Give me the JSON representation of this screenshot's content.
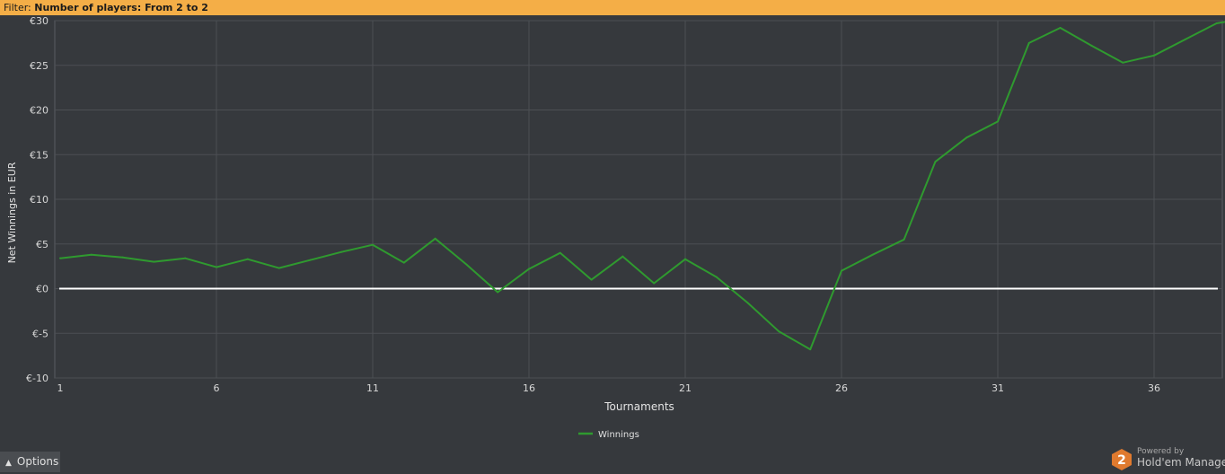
{
  "filter": {
    "prefix": "Filter:",
    "text": "Number of players: From 2 to 2",
    "bar_color": "#f4ae47"
  },
  "options": {
    "icon": "chevron-up-icon",
    "label": "Options"
  },
  "branding": {
    "badge_text": "2",
    "powered": "Powered by",
    "product": "Hold'em Manager",
    "badge_color": "#e07a2e"
  },
  "chart_data": {
    "type": "line",
    "title": "",
    "xlabel": "Tournaments",
    "ylabel": "Net Winnings in EUR",
    "xlim": [
      1,
      38.5
    ],
    "ylim": [
      -10,
      30
    ],
    "x_ticks": [
      1,
      6,
      11,
      16,
      21,
      26,
      31,
      36
    ],
    "y_ticks": [
      {
        "value": 30,
        "label": "€30"
      },
      {
        "value": 25,
        "label": "€25"
      },
      {
        "value": 20,
        "label": "€20"
      },
      {
        "value": 15,
        "label": "€15"
      },
      {
        "value": 10,
        "label": "€10"
      },
      {
        "value": 5,
        "label": "€5"
      },
      {
        "value": 0,
        "label": "€0"
      },
      {
        "value": -5,
        "label": "€-5"
      },
      {
        "value": -10,
        "label": "€-10"
      }
    ],
    "grid": true,
    "zero_line_color": "#ffffff",
    "legend_position": "bottom-center",
    "series": [
      {
        "name": "Winnings",
        "color": "#2f9a2f",
        "x": [
          1,
          2,
          3,
          4,
          5,
          6,
          7,
          8,
          9,
          10,
          11,
          12,
          13,
          14,
          15,
          16,
          17,
          18,
          19,
          20,
          21,
          22,
          23,
          24,
          25,
          26,
          27,
          28,
          29,
          30,
          31,
          32,
          33,
          34,
          35,
          36,
          37,
          38,
          38.5
        ],
        "y": [
          3.4,
          3.8,
          3.5,
          3.0,
          3.4,
          2.4,
          3.3,
          2.3,
          3.2,
          4.1,
          4.9,
          2.9,
          5.6,
          2.7,
          -0.4,
          2.2,
          4.0,
          1.0,
          3.6,
          0.6,
          3.3,
          1.3,
          -1.6,
          -4.8,
          -6.8,
          2.0,
          3.8,
          5.5,
          14.2,
          16.9,
          18.7,
          27.5,
          29.2,
          27.2,
          25.3,
          26.1,
          27.9,
          29.7,
          30.0
        ]
      }
    ]
  }
}
